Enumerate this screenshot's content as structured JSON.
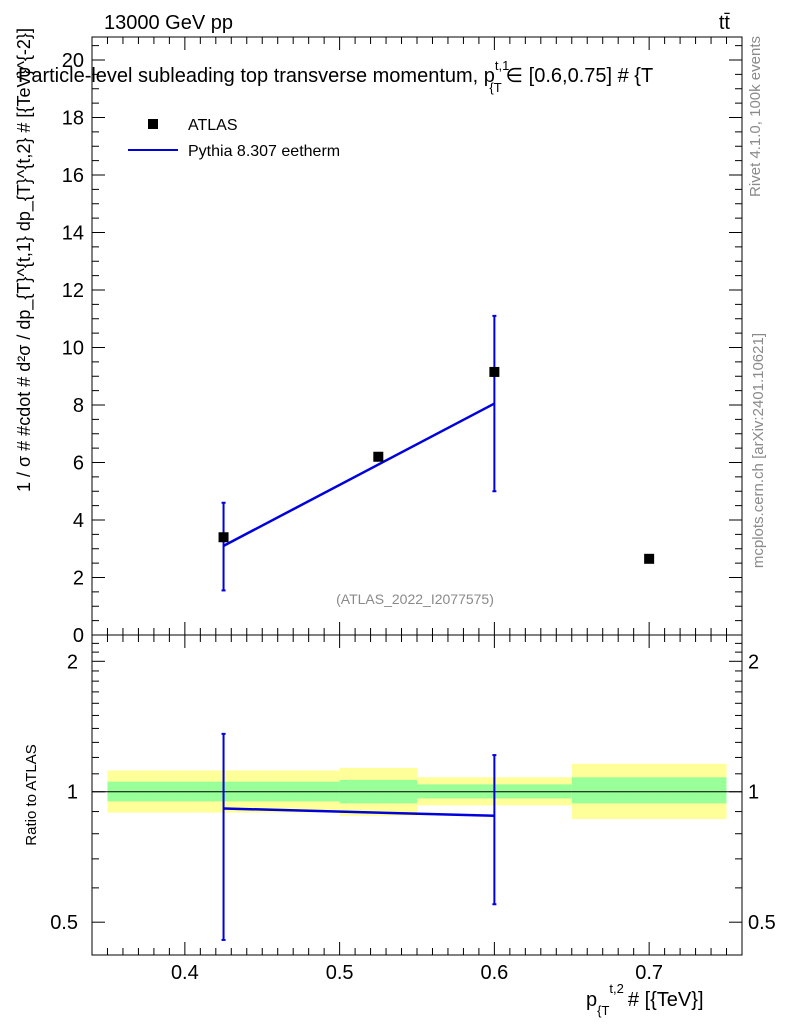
{
  "header": {
    "energy_label": "13000 GeV pp",
    "process_label": "tt̄"
  },
  "side_labels": {
    "rivet": "Rivet 4.1.0,  100k events",
    "mcplots": "mcplots.cern.ch [arXiv:2401.10621]"
  },
  "colors": {
    "mc_line": "#0000dd",
    "band_inner": "#99ff99",
    "band_outer": "#ffff99",
    "data_marker": "#000000"
  },
  "chart_data": {
    "type": "scatter",
    "title": "Particle-level subleading top transverse momentum, p_{T}^{t,1} ∈ [0.6,0.75] # {T",
    "title_main": "Particle-level subleading top transverse momentum, p",
    "title_sup": "t,1",
    "title_sub": "{T",
    "title_tail": "∈ [0.6,0.75] # {T",
    "xlabel": "p_{T}^{t,2} # [{TeV}]",
    "xlabel_main": "p",
    "xlabel_sub": "{T",
    "xlabel_sup": "t,2",
    "xlabel_tail": "# [{TeV}]",
    "ylabel": "1 / σ # #cdot # d²σ / dp_{T}^{t,1} dp_{T}^{t,2} # [{TeV}^{-2}]",
    "watermark": "(ATLAS_2022_I2077575)",
    "xlim": [
      0.34,
      0.76
    ],
    "ylim": [
      0,
      20.8
    ],
    "x_ticks": [
      0.4,
      0.5,
      0.6,
      0.7
    ],
    "x_tick_labels": [
      "0.4",
      "0.5",
      "0.6",
      "0.7"
    ],
    "y_ticks": [
      0,
      2,
      4,
      6,
      8,
      10,
      12,
      14,
      16,
      18,
      20
    ],
    "y_tick_labels": [
      "0",
      "2",
      "4",
      "6",
      "8",
      "10",
      "12",
      "14",
      "16",
      "18",
      "20"
    ],
    "legend": {
      "placement": "top-left",
      "data_label": "ATLAS",
      "mc_label": "Pythia 8.307 eetherm"
    },
    "data_points": [
      {
        "x": 0.425,
        "y": 3.4
      },
      {
        "x": 0.525,
        "y": 6.2
      },
      {
        "x": 0.6,
        "y": 9.15
      },
      {
        "x": 0.7,
        "y": 2.65
      }
    ],
    "mc_points": [
      {
        "x": 0.425,
        "y": 3.1,
        "err_lo": 1.55,
        "err_hi": 4.6
      },
      {
        "x": 0.6,
        "y": 8.05,
        "err_lo": 5.0,
        "err_hi": 11.1
      }
    ],
    "ratio": {
      "ylabel": "Ratio to ATLAS",
      "ylim": [
        0.42,
        2.3
      ],
      "y_ticks": [
        0.5,
        1,
        2
      ],
      "y_tick_labels": [
        "0.5",
        "1",
        "2"
      ],
      "bands": [
        {
          "x_lo": 0.35,
          "x_hi": 0.5,
          "inner_lo": 0.95,
          "inner_hi": 1.055,
          "outer_lo": 0.895,
          "outer_hi": 1.12
        },
        {
          "x_lo": 0.5,
          "x_hi": 0.55,
          "inner_lo": 0.94,
          "inner_hi": 1.065,
          "outer_lo": 0.88,
          "outer_hi": 1.135
        },
        {
          "x_lo": 0.55,
          "x_hi": 0.65,
          "inner_lo": 0.965,
          "inner_hi": 1.04,
          "outer_lo": 0.93,
          "outer_hi": 1.08
        },
        {
          "x_lo": 0.65,
          "x_hi": 0.75,
          "inner_lo": 0.94,
          "inner_hi": 1.08,
          "outer_lo": 0.865,
          "outer_hi": 1.16
        }
      ],
      "mc_points": [
        {
          "x": 0.425,
          "y": 0.915,
          "err_lo": 0.455,
          "err_hi": 1.36
        },
        {
          "x": 0.6,
          "y": 0.88,
          "err_lo": 0.55,
          "err_hi": 1.215
        }
      ]
    }
  }
}
